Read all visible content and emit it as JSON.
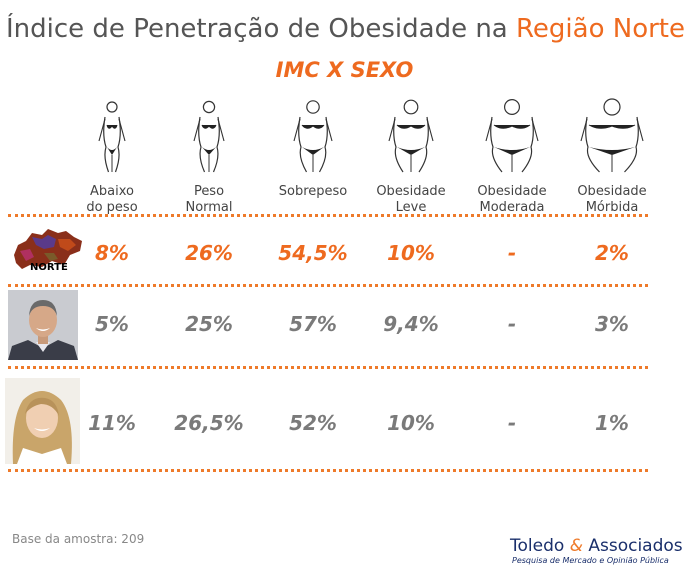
{
  "title_main": "Índice de Penetração de Obesidade na ",
  "title_highlight": "Região Norte",
  "subtitle": "IMC X SEXO",
  "colors": {
    "accent": "#ee6a1f",
    "gray_text": "#7a7a7a",
    "brand": "#1a2f6b"
  },
  "chart_data": {
    "type": "table",
    "title": "Índice de Penetração de Obesidade na Região Norte",
    "subtitle": "IMC X SEXO",
    "columns": [
      "Abaixo do peso",
      "Peso Normal",
      "Sobrepeso",
      "Obesidade Leve",
      "Obesidade Moderada",
      "Obesidade Mórbida"
    ],
    "rows": [
      {
        "label": "NORTE",
        "values": [
          "8%",
          "26%",
          "54,5%",
          "10%",
          "-",
          "2%"
        ]
      },
      {
        "label": "",
        "values": [
          "5%",
          "25%",
          "57%",
          "9,4%",
          "-",
          "3%"
        ]
      },
      {
        "label": "",
        "values": [
          "11%",
          "26,5%",
          "52%",
          "10%",
          "-",
          "1%"
        ]
      }
    ]
  },
  "column_labels": [
    [
      "Abaixo",
      "do peso"
    ],
    [
      "Peso",
      "Normal"
    ],
    [
      "Sobrepeso",
      ""
    ],
    [
      "Obesidade",
      "Leve"
    ],
    [
      "Obesidade",
      "Moderada"
    ],
    [
      "Obesidade",
      "Mórbida"
    ]
  ],
  "footer": {
    "base": "Base da amostra: 209",
    "brand_a": "Toledo ",
    "brand_amp": "&",
    "brand_b": " Associados",
    "brand_sub": "Pesquisa de Mercado e Opinião Pública"
  }
}
